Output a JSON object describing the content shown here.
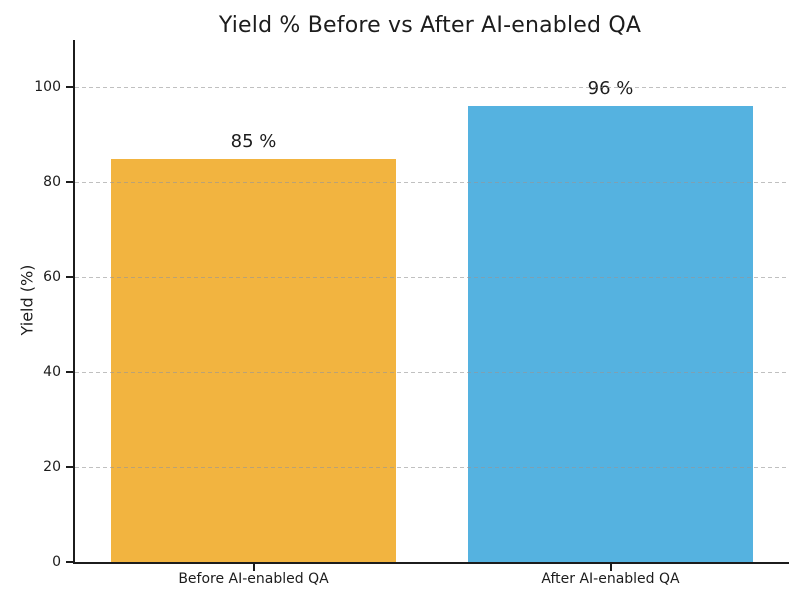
{
  "chart_data": {
    "type": "bar",
    "title": "Yield % Before vs After AI-enabled QA",
    "ylabel": "Yield (%)",
    "xlabel": "",
    "categories": [
      "Before AI-enabled QA",
      "After AI-enabled QA"
    ],
    "values": [
      85,
      96
    ],
    "value_labels": [
      "85 %",
      "96 %"
    ],
    "bar_colors": [
      "#F2B440",
      "#55B2E0"
    ],
    "yticks": [
      0,
      20,
      40,
      60,
      80,
      100
    ],
    "ylim": [
      0,
      110
    ],
    "grid": {
      "axis": "y",
      "style": "dashed",
      "color_on_white": "#c9c9c9",
      "rgba": "rgba(150,150,150,0.6)",
      "drawn_above_bars": true
    },
    "legend": "none",
    "colors": {
      "axis": "#1c1c1c",
      "text": "#1c1c1c",
      "background": "#ffffff"
    }
  }
}
